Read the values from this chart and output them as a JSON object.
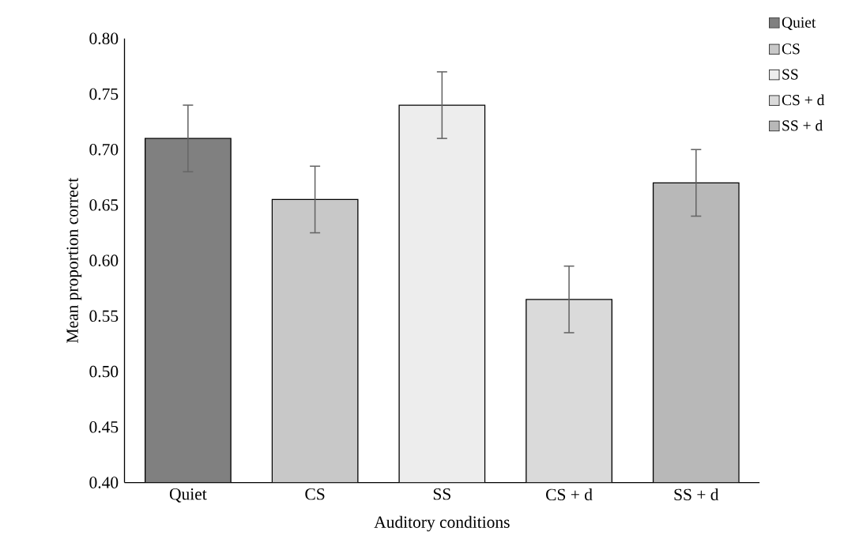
{
  "chart_data": {
    "type": "bar",
    "xlabel": "Auditory conditions",
    "ylabel": "Mean proportion correct",
    "categories": [
      "Quiet",
      "CS",
      "SS",
      "CS + d",
      "SS + d"
    ],
    "series": [
      {
        "name": "Quiet",
        "color": "#808080",
        "values": [
          0.71,
          null,
          null,
          null,
          null
        ],
        "errors": [
          0.03,
          null,
          null,
          null,
          null
        ]
      },
      {
        "name": "CS",
        "color": "#c8c8c8",
        "values": [
          null,
          0.655,
          null,
          null,
          null
        ],
        "errors": [
          null,
          0.03,
          null,
          null,
          null
        ]
      },
      {
        "name": "SS",
        "color": "#ededed",
        "values": [
          null,
          null,
          0.74,
          null,
          null
        ],
        "errors": [
          null,
          null,
          0.03,
          null,
          null
        ]
      },
      {
        "name": "CS + d",
        "color": "#dadada",
        "values": [
          null,
          null,
          null,
          0.565,
          null
        ],
        "errors": [
          null,
          null,
          null,
          0.03,
          null
        ]
      },
      {
        "name": "SS + d",
        "color": "#b8b8b8",
        "values": [
          null,
          null,
          null,
          null,
          0.67
        ],
        "errors": [
          null,
          null,
          null,
          null,
          0.03
        ]
      }
    ],
    "ylim": [
      0.4,
      0.8
    ],
    "yticks": [
      {
        "value": 0.4,
        "label": "0.40"
      },
      {
        "value": 0.45,
        "label": "0.45"
      },
      {
        "value": 0.5,
        "label": "0.50"
      },
      {
        "value": 0.55,
        "label": "0.55"
      },
      {
        "value": 0.6,
        "label": "0.60"
      },
      {
        "value": 0.65,
        "label": "0.65"
      },
      {
        "value": 0.7,
        "label": "0.70"
      },
      {
        "value": 0.75,
        "label": "0.75"
      },
      {
        "value": 0.8,
        "label": "0.80"
      }
    ],
    "legend": "right"
  }
}
